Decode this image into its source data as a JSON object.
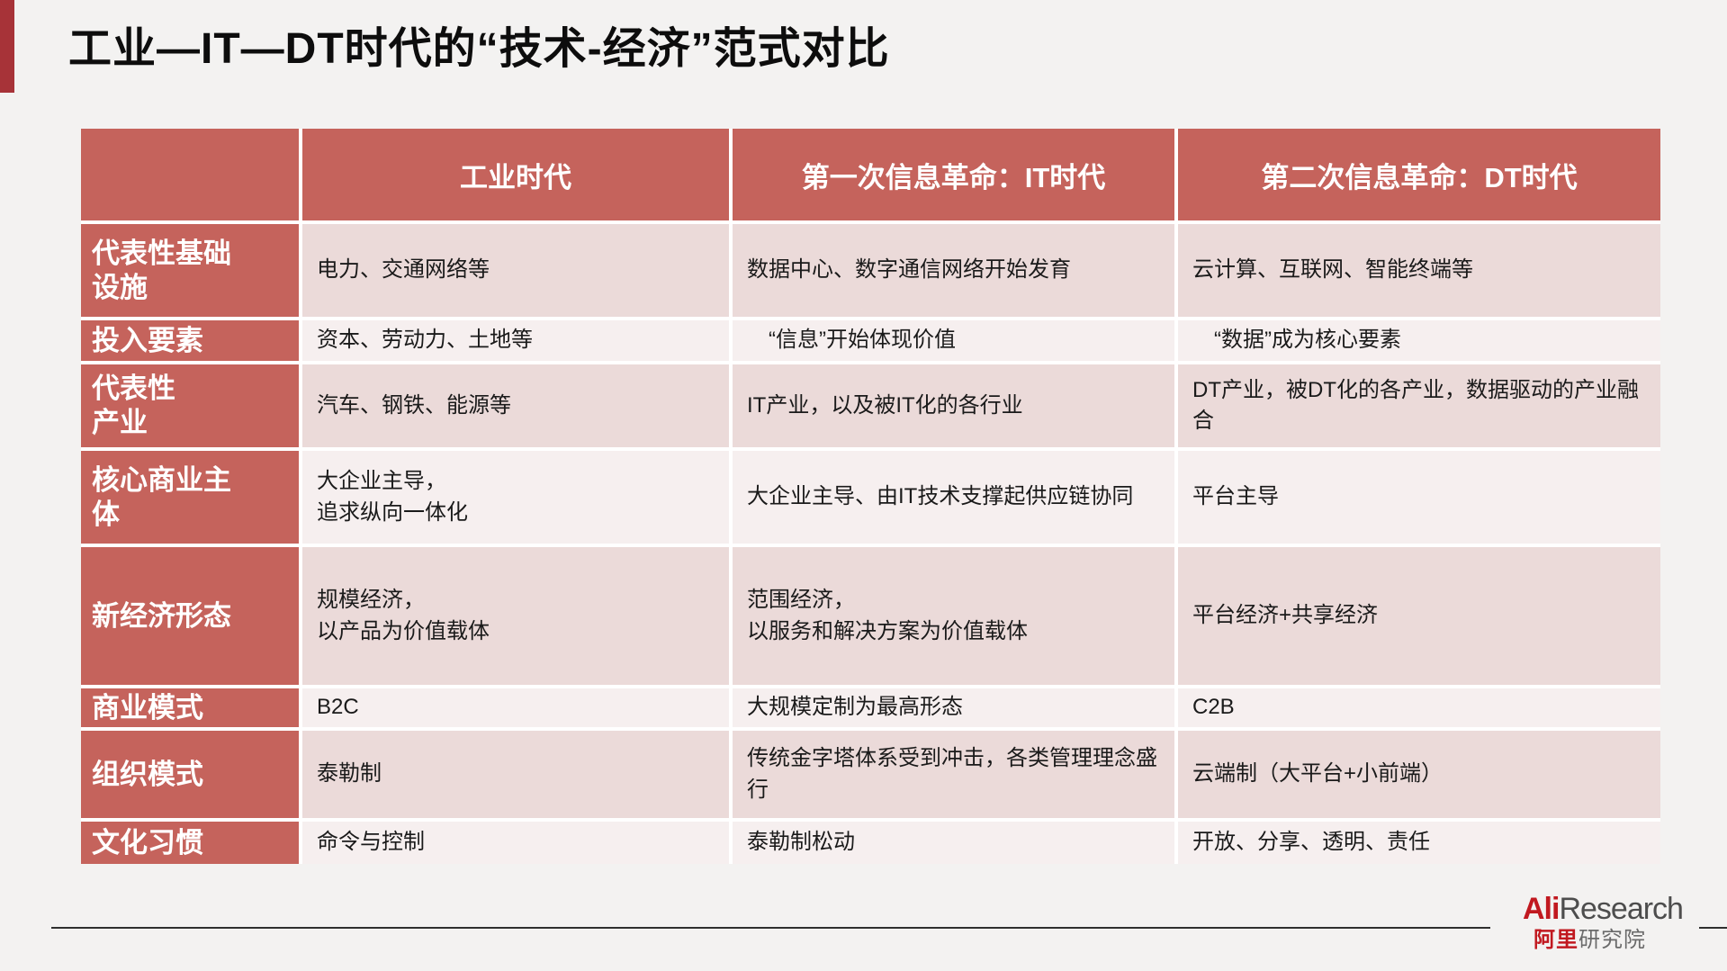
{
  "title": "工业—IT—DT时代的“技术-经济”范式对比",
  "table": {
    "corner": "",
    "columns": [
      "工业时代",
      "第一次信息革命：IT时代",
      "第二次信息革命：DT时代"
    ],
    "rows": [
      {
        "label": "代表性基础\n设施",
        "cells": [
          "电力、交通网络等",
          "数据中心、数字通信网络开始发育",
          "云计算、互联网、智能终端等"
        ]
      },
      {
        "label": "投入要素",
        "cells": [
          "资本、劳动力、土地等",
          "　“信息”开始体现价值",
          "　“数据”成为核心要素"
        ]
      },
      {
        "label": "代表性\n产业",
        "cells": [
          "汽车、钢铁、能源等",
          "IT产业，以及被IT化的各行业",
          "DT产业，被DT化的各产业，数据驱动的产业融合"
        ]
      },
      {
        "label": "核心商业主\n体",
        "cells": [
          "大企业主导，\n追求纵向一体化",
          "大企业主导、由IT技术支撑起供应链协同",
          "平台主导"
        ]
      },
      {
        "label": "新经济形态",
        "cells": [
          "规模经济，\n以产品为价值载体",
          "范围经济，\n以服务和解决方案为价值载体",
          "平台经济+共享经济"
        ]
      },
      {
        "label": "商业模式",
        "cells": [
          "B2C",
          "大规模定制为最高形态",
          "C2B"
        ]
      },
      {
        "label": "组织模式",
        "cells": [
          "泰勒制",
          "传统金字塔体系受到冲击，各类管理理念盛行",
          "云端制（大平台+小前端）"
        ]
      },
      {
        "label": "文化习惯",
        "cells": [
          "命令与控制",
          "泰勒制松动",
          "开放、分享、透明、责任"
        ]
      }
    ]
  },
  "footer": {
    "logo_en_bold": "Ali",
    "logo_en_rest": "Research",
    "logo_cn_bold": "阿里",
    "logo_cn_rest": "研究院"
  },
  "colors": {
    "accent_bar": "#A73338",
    "header_red": "#C5635C",
    "band_dark": "#EBDAD9",
    "band_light": "#F6EFEF",
    "grid_line": "#FFFFFF",
    "logo_red": "#C11920",
    "background": "#F3F2F1"
  }
}
